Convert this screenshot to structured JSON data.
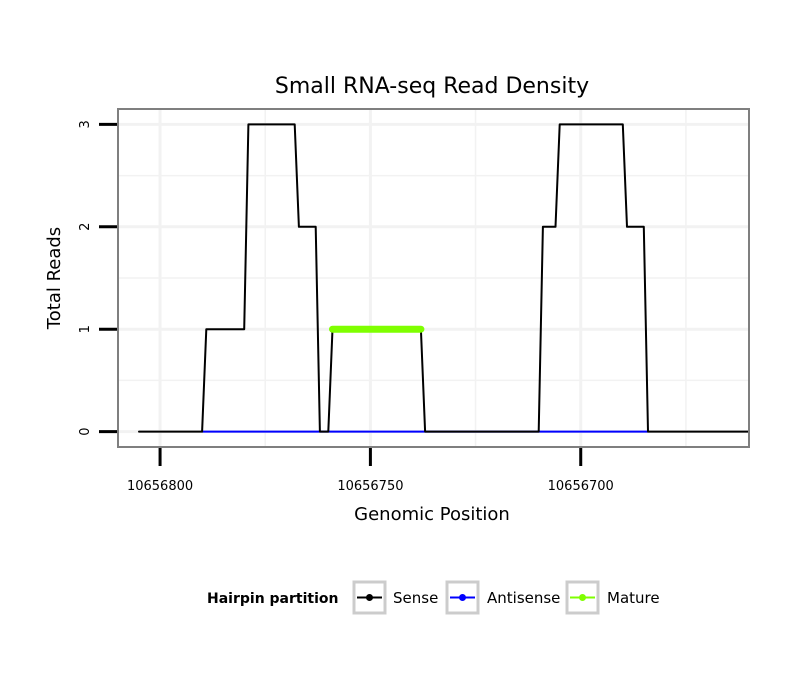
{
  "chart_data": {
    "type": "line",
    "title": "Small RNA-seq Read Density",
    "xlabel": "Genomic Position",
    "ylabel": "Total Reads",
    "x_reversed": true,
    "xlim": [
      10656810,
      10656660
    ],
    "ylim": [
      -0.15,
      3.15
    ],
    "x_ticks": [
      10656800,
      10656750,
      10656700
    ],
    "x_tick_labels": [
      "10656800",
      "10656750",
      "10656700"
    ],
    "y_ticks": [
      0,
      1,
      2,
      3
    ],
    "y_tick_labels": [
      "0",
      "1",
      "2",
      "3"
    ],
    "grid": true,
    "legend": {
      "title": "Hairpin partition",
      "position": "bottom",
      "entries": [
        "Sense",
        "Antisense",
        "Mature"
      ]
    },
    "series": [
      {
        "name": "Sense",
        "color": "#000000",
        "x": [
          10656805,
          10656790,
          10656789,
          10656780,
          10656779,
          10656768,
          10656767,
          10656763,
          10656762,
          10656760,
          10656759,
          10656757,
          10656756,
          10656738,
          10656737,
          10656710,
          10656709,
          10656706,
          10656705,
          10656690,
          10656689,
          10656685,
          10656684,
          10656660
        ],
        "y": [
          0,
          0,
          1,
          1,
          3,
          3,
          2,
          2,
          0,
          0,
          1,
          1,
          1,
          1,
          0,
          0,
          2,
          2,
          3,
          3,
          2,
          2,
          0,
          0
        ]
      },
      {
        "name": "Antisense",
        "color": "#0000ff",
        "x": [
          10656790,
          10656684
        ],
        "y": [
          0,
          0
        ]
      },
      {
        "name": "Mature",
        "color": "#7fff00",
        "x": [
          10656759,
          10656738
        ],
        "y": [
          1,
          1
        ]
      }
    ]
  }
}
